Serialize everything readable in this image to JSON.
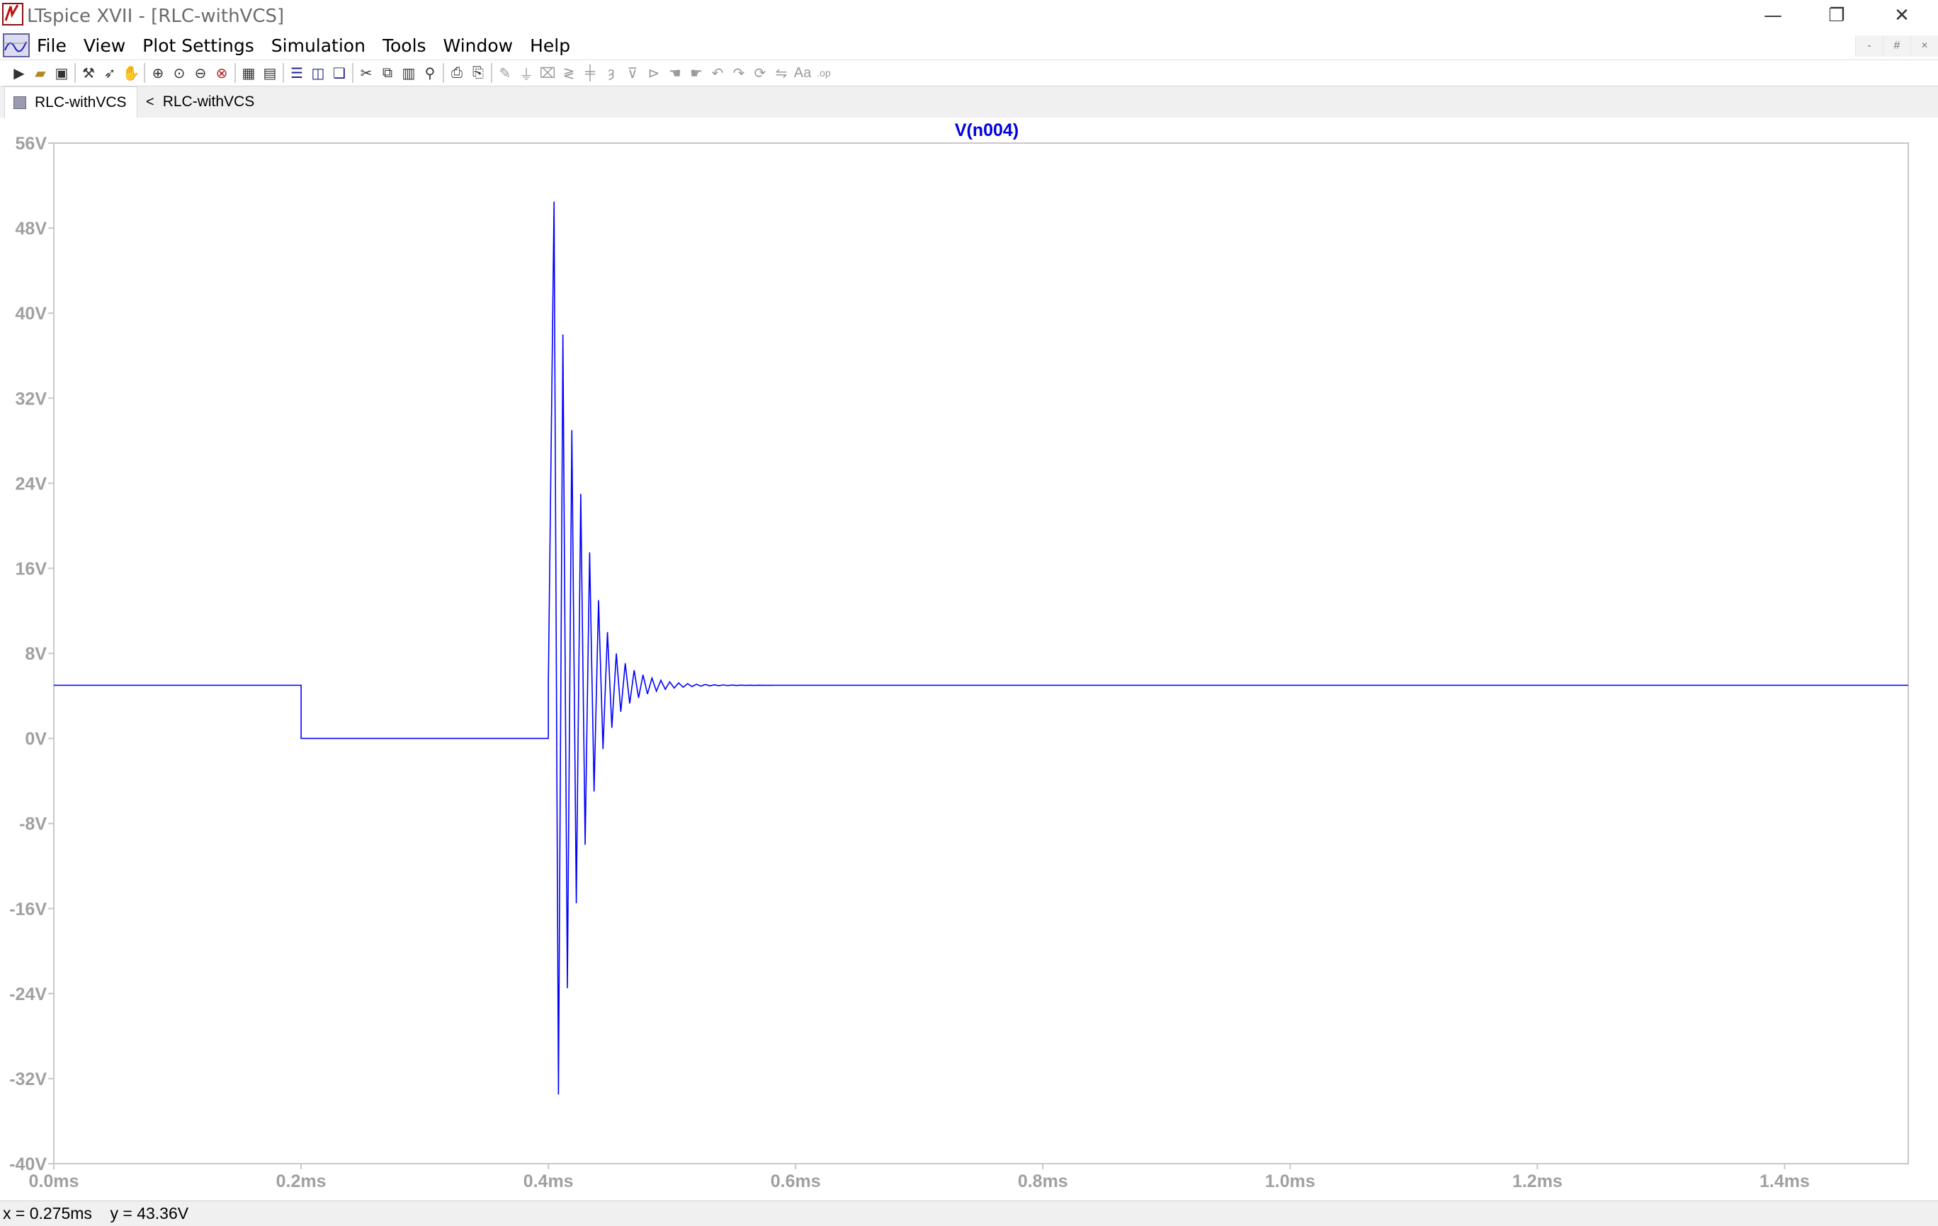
{
  "window": {
    "title": "LTspice XVII - [RLC-withVCS]",
    "minimize_glyph": "—",
    "maximize_glyph": "❐",
    "close_glyph": "✕"
  },
  "menubar": {
    "items": [
      "File",
      "View",
      "Plot Settings",
      "Simulation",
      "Tools",
      "Window",
      "Help"
    ],
    "mdi_controls": [
      "-",
      "#",
      "×"
    ]
  },
  "toolbar": {
    "icons": [
      "new-schematic-icon",
      "open-icon",
      "save-icon",
      "control-panel-icon",
      "run-icon",
      "halt-icon",
      "zoom-in-icon",
      "zoom-area-icon",
      "zoom-out-icon",
      "zoom-fit-icon",
      "autorange-icon",
      "grid-icon",
      "tile-horizontal-icon",
      "tile-vertical-icon",
      "cascade-icon",
      "cut-icon",
      "copy-icon",
      "paste-icon",
      "find-icon",
      "print-icon",
      "print-setup-icon",
      "wire-icon",
      "ground-icon",
      "label-icon",
      "resistor-icon",
      "capacitor-icon",
      "inductor-icon",
      "diode-icon",
      "component-icon",
      "move-icon",
      "drag-icon",
      "undo-icon",
      "redo-icon",
      "rotate-icon",
      "mirror-icon",
      "text-icon",
      "spice-directive-icon"
    ]
  },
  "tabs": [
    {
      "label": "RLC-withVCS",
      "active": true
    },
    {
      "label": "RLC-withVCS",
      "active": false
    }
  ],
  "status": {
    "x_readout": "x = 0.275ms",
    "y_readout": "y = 43.36V"
  },
  "colors": {
    "trace": "#0000ff",
    "axis_labels": "#a0a0a0",
    "plot_frame": "#c8c8c8",
    "trace_title": "#0000dd"
  },
  "chart_data": {
    "type": "line",
    "title": "",
    "xlabel": "",
    "ylabel": "",
    "series": [
      {
        "name": "V(n004)",
        "x_ms": [
          0.0,
          0.2,
          0.2,
          0.4,
          0.4
        ],
        "y_v": [
          5.0,
          5.0,
          0.0,
          0.0,
          5.0
        ],
        "ringing": {
          "start_ms": 0.401,
          "offset_v": 5.0,
          "peaks_v": [
            50.5,
            -33.5,
            38.0,
            -23.5,
            29.0,
            -15.5,
            23.0,
            -10.0,
            17.5,
            -5.0,
            13.0,
            -1.0,
            10.0,
            1.0,
            8.0
          ],
          "period_ms": 0.0072,
          "settled_ms": 0.58
        },
        "end_ms": 1.5
      }
    ],
    "xlim_ms": [
      0.0,
      1.5
    ],
    "ylim_v": [
      -40,
      56
    ],
    "x_ticks": [
      "0.0ms",
      "0.2ms",
      "0.4ms",
      "0.6ms",
      "0.8ms",
      "1.0ms",
      "1.2ms",
      "1.4ms"
    ],
    "x_tick_values": [
      0.0,
      0.2,
      0.4,
      0.6,
      0.8,
      1.0,
      1.2,
      1.4
    ],
    "y_ticks": [
      "56V",
      "48V",
      "40V",
      "32V",
      "24V",
      "16V",
      "8V",
      "0V",
      "-8V",
      "-16V",
      "-24V",
      "-32V",
      "-40V"
    ],
    "y_tick_values": [
      56,
      48,
      40,
      32,
      24,
      16,
      8,
      0,
      -8,
      -16,
      -24,
      -32,
      -40
    ],
    "grid": false
  }
}
